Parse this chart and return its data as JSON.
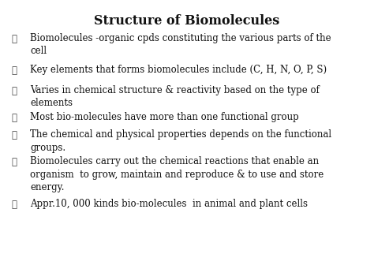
{
  "title": "Structure of Biomolecules",
  "background_color": "#ffffff",
  "title_fontsize": 11.5,
  "title_bold": true,
  "bullet_char": "❖",
  "bullet_color": "#444444",
  "text_color": "#111111",
  "text_fontsize": 8.5,
  "bullets": [
    "Biomolecules -organic cpds constituting the various parts of the\ncell",
    "Key elements that forms biomolecules include (C, H, N, O, P, S)",
    "Varies in chemical structure & reactivity based on the type of\nelements",
    "Most bio-molecules have more than one functional group",
    "The chemical and physical properties depends on the functional\ngroups.",
    "Biomolecules carry out the chemical reactions that enable an\norganism  to grow, maintain and reproduce & to use and store\nenergy.",
    "Appr.10, 000 kinds bio-molecules  in animal and plant cells"
  ]
}
